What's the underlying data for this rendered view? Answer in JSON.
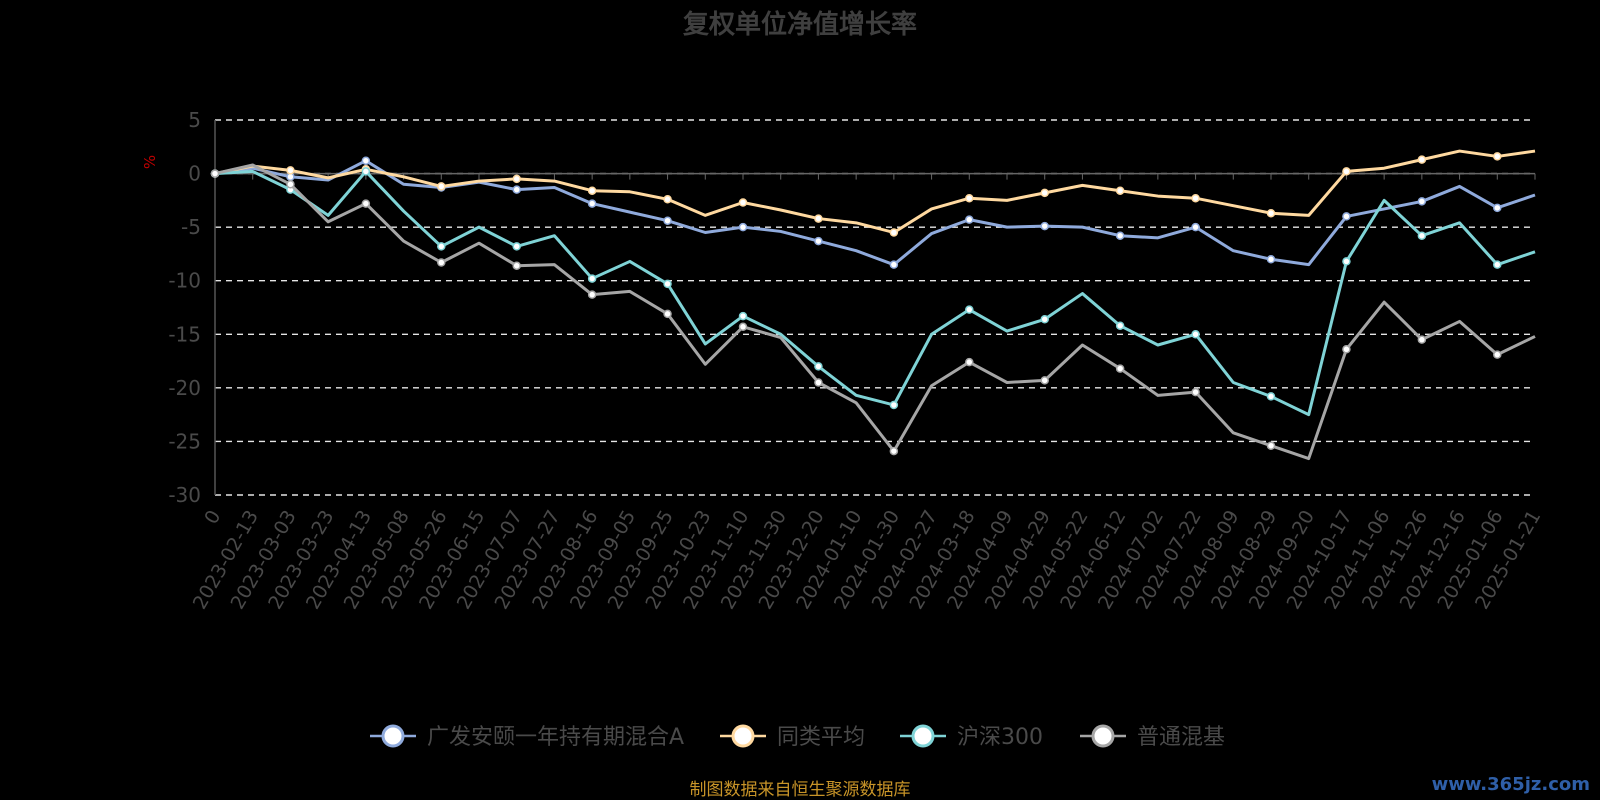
{
  "chart_data": {
    "type": "line",
    "title": "复权单位净值增长率",
    "ylabel": "%",
    "ylim": [
      -30,
      5
    ],
    "yticks": [
      "5",
      "0",
      "-5",
      "-10",
      "-15",
      "-20",
      "-25",
      "-30"
    ],
    "grid": "horizontal-dashed",
    "legend_position": "bottom",
    "x": [
      "0",
      "2023-02-13",
      "2023-03-03",
      "2023-03-23",
      "2023-04-13",
      "2023-05-08",
      "2023-05-26",
      "2023-06-15",
      "2023-07-07",
      "2023-07-27",
      "2023-08-16",
      "2023-09-05",
      "2023-09-25",
      "2023-10-23",
      "2023-11-10",
      "2023-11-30",
      "2023-12-20",
      "2024-01-10",
      "2024-01-30",
      "2024-02-27",
      "2024-03-18",
      "2024-04-09",
      "2024-04-29",
      "2024-05-22",
      "2024-06-12",
      "2024-07-02",
      "2024-07-22",
      "2024-08-09",
      "2024-08-29",
      "2024-09-20",
      "2024-10-17",
      "2024-11-06",
      "2024-11-26",
      "2024-12-16",
      "2025-01-06",
      "2025-01-21"
    ],
    "series": [
      {
        "name": "广发安颐一年持有期混合A",
        "color": "#8faadc",
        "values": [
          0,
          0.5,
          -0.3,
          -0.6,
          1.2,
          -1.0,
          -1.3,
          -0.8,
          -1.5,
          -1.3,
          -2.8,
          -3.6,
          -4.4,
          -5.5,
          -5.0,
          -5.4,
          -6.3,
          -7.2,
          -8.5,
          -5.6,
          -4.3,
          -5.0,
          -4.9,
          -5.0,
          -5.8,
          -6.0,
          -5.0,
          -7.2,
          -8.0,
          -8.5,
          -4.0,
          -3.3,
          -2.6,
          -1.2,
          -3.2,
          -2.0
        ]
      },
      {
        "name": "同类平均",
        "color": "#ffd9a0",
        "values": [
          0,
          0.7,
          0.3,
          -0.4,
          0.4,
          -0.3,
          -1.2,
          -0.7,
          -0.5,
          -0.7,
          -1.6,
          -1.7,
          -2.4,
          -3.9,
          -2.7,
          -3.4,
          -4.2,
          -4.6,
          -5.5,
          -3.3,
          -2.3,
          -2.5,
          -1.8,
          -1.1,
          -1.6,
          -2.1,
          -2.3,
          -3.0,
          -3.7,
          -3.9,
          0.2,
          0.5,
          1.3,
          2.1,
          1.6,
          2.1
        ]
      },
      {
        "name": "沪深300",
        "color": "#7fd3d6",
        "values": [
          0,
          0.2,
          -1.5,
          -3.9,
          0.2,
          -3.5,
          -6.8,
          -5.0,
          -6.8,
          -5.8,
          -9.8,
          -8.2,
          -10.3,
          -15.9,
          -13.3,
          -15.0,
          -18.0,
          -20.7,
          -21.6,
          -15.0,
          -12.7,
          -14.7,
          -13.6,
          -11.2,
          -14.2,
          -16.0,
          -15.0,
          -19.5,
          -20.8,
          -22.5,
          -8.2,
          -2.5,
          -5.8,
          -4.6,
          -8.5,
          -7.3
        ]
      },
      {
        "name": "普通混基",
        "color": "#a6a6a6",
        "values": [
          0,
          0.8,
          -1.0,
          -4.5,
          -2.8,
          -6.3,
          -8.3,
          -6.5,
          -8.6,
          -8.5,
          -11.3,
          -11.0,
          -13.1,
          -17.8,
          -14.3,
          -15.3,
          -19.5,
          -21.4,
          -25.9,
          -19.8,
          -17.6,
          -19.5,
          -19.3,
          -16.0,
          -18.2,
          -20.7,
          -20.4,
          -24.2,
          -25.4,
          -26.6,
          -16.4,
          -12.0,
          -15.5,
          -13.8,
          -16.9,
          -15.2
        ]
      }
    ],
    "source_note": "制图数据来自恒生聚源数据库"
  },
  "watermark": "www.365jz.com"
}
